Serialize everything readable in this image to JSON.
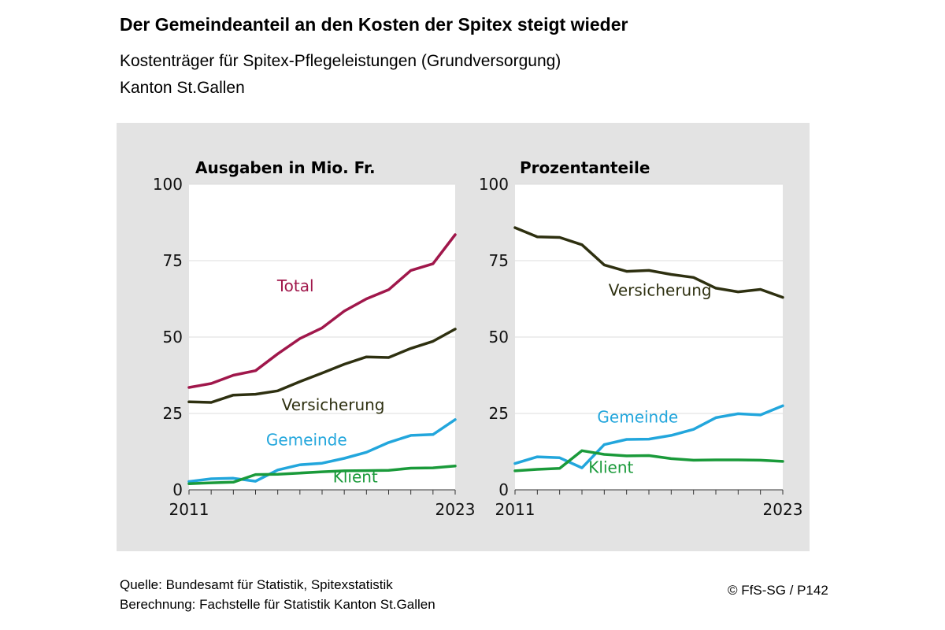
{
  "header": {
    "title": "Der Gemeindeanteil an den Kosten der Spitex steigt wieder",
    "subtitle": "Kostenträger für Spitex-Pflegeleistungen (Grundversorgung)",
    "subtitle2": "Kanton St.Gallen"
  },
  "footer": {
    "source": "Quelle: Bundesamt für Statistik, Spitexstatistik",
    "calc": "Berechnung: Fachstelle für Statistik Kanton St.Gallen",
    "copyright": "© FfS-SG / P142"
  },
  "chart_data": [
    {
      "type": "line",
      "title": "Ausgaben in Mio. Fr.",
      "x": [
        2011,
        2012,
        2013,
        2014,
        2015,
        2016,
        2017,
        2018,
        2019,
        2020,
        2021,
        2022,
        2023
      ],
      "xticks_labeled": [
        "2011",
        "2023"
      ],
      "ylim": [
        0,
        100
      ],
      "yticks": [
        0,
        25,
        50,
        75,
        100
      ],
      "grid": true,
      "series": [
        {
          "name": "Total",
          "color": "#a0174b",
          "label_pos": [
            2015.8,
            65
          ],
          "values": [
            33.5,
            34.8,
            37.5,
            39,
            44.5,
            49.5,
            53,
            58.5,
            62.5,
            65.5,
            71.8,
            74,
            83.5
          ]
        },
        {
          "name": "Versicherung",
          "color": "#2e3010",
          "label_pos": [
            2017.5,
            26
          ],
          "values": [
            28.8,
            28.6,
            31,
            31.3,
            32.4,
            35.4,
            38.2,
            41.1,
            43.5,
            43.3,
            46.3,
            48.6,
            52.6
          ]
        },
        {
          "name": "Gemeinde",
          "color": "#22a6dc",
          "label_pos": [
            2016.3,
            14.5
          ],
          "values": [
            2.7,
            3.6,
            3.8,
            2.8,
            6.5,
            8.2,
            8.7,
            10.3,
            12.3,
            15.5,
            17.8,
            18.1,
            23
          ]
        },
        {
          "name": "Klient",
          "color": "#1a9a3a",
          "label_pos": [
            2018.5,
            2.5
          ],
          "values": [
            2,
            2.3,
            2.5,
            5,
            5.1,
            5.5,
            5.9,
            6.2,
            6.3,
            6.4,
            7.1,
            7.2,
            7.8
          ]
        }
      ]
    },
    {
      "type": "line",
      "title": "Prozentanteile",
      "x": [
        2011,
        2012,
        2013,
        2014,
        2015,
        2016,
        2017,
        2018,
        2019,
        2020,
        2021,
        2022,
        2023
      ],
      "xticks_labeled": [
        "2011",
        "2023"
      ],
      "ylim": [
        0,
        100
      ],
      "yticks": [
        0,
        25,
        50,
        75,
        100
      ],
      "grid": true,
      "series": [
        {
          "name": "Versicherung",
          "color": "#2e3010",
          "label_pos": [
            2017.5,
            63.5
          ],
          "values": [
            85.8,
            82.8,
            82.6,
            80.2,
            73.6,
            71.5,
            71.8,
            70.5,
            69.5,
            66,
            64.8,
            65.6,
            63
          ]
        },
        {
          "name": "Gemeinde",
          "color": "#22a6dc",
          "label_pos": [
            2016.5,
            22
          ],
          "values": [
            8.6,
            10.8,
            10.5,
            7.2,
            14.8,
            16.5,
            16.6,
            17.8,
            19.8,
            23.6,
            24.9,
            24.5,
            27.5
          ]
        },
        {
          "name": "Klient",
          "color": "#1a9a3a",
          "label_pos": [
            2015.3,
            5.5
          ],
          "values": [
            6.2,
            6.7,
            7,
            12.8,
            11.6,
            11.1,
            11.2,
            10.2,
            9.7,
            9.8,
            9.8,
            9.7,
            9.3
          ]
        }
      ]
    }
  ]
}
